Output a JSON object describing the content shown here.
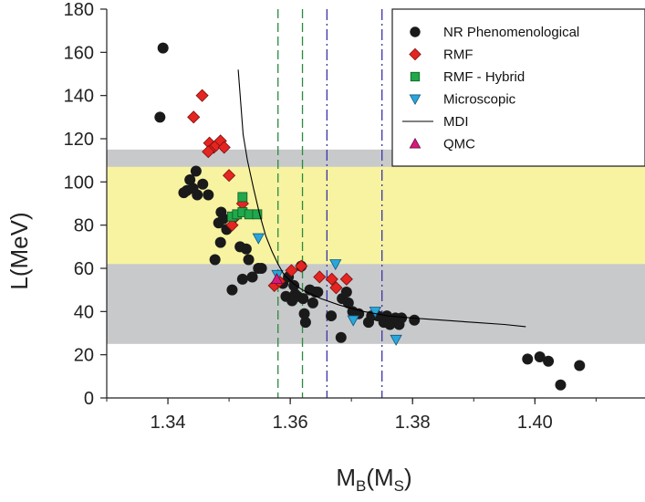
{
  "chart_data": {
    "type": "scatter",
    "xlabel": {
      "main": "M",
      "sub1": "B",
      "mid": "(M",
      "sub2": "S",
      "end": ")"
    },
    "ylabel": "L(MeV)",
    "xlim": [
      1.33,
      1.418
    ],
    "ylim": [
      0,
      180
    ],
    "xticks": [
      1.34,
      1.36,
      1.38,
      1.4
    ],
    "xtick_labels": [
      "1.34",
      "1.36",
      "1.38",
      "1.40"
    ],
    "yticks": [
      0,
      20,
      40,
      60,
      80,
      100,
      120,
      140,
      160,
      180
    ],
    "ytick_labels": [
      "0",
      "20",
      "40",
      "60",
      "80",
      "100",
      "120",
      "140",
      "160",
      "180"
    ],
    "grid": false,
    "legend_placement": "top-right",
    "colors": {
      "gray_band": "#c8c9cb",
      "yellow_band": "#f7f3a1",
      "nr": "#1a1a1a",
      "rmf": "#e52521",
      "hybrid": "#20a84a",
      "micro": "#2aa6dc",
      "qmc": "#d6197c",
      "mdi": "#000000",
      "green_dash": "#2a8a3e",
      "blue_dashdot": "#3a33a8"
    },
    "bands": [
      {
        "ymin": 25,
        "ymax": 115,
        "color": "gray"
      },
      {
        "ymin": 62,
        "ymax": 107,
        "color": "yellow"
      }
    ],
    "vlines": [
      {
        "x": 1.358,
        "style": "dashed",
        "color": "green"
      },
      {
        "x": 1.362,
        "style": "dashed",
        "color": "green"
      },
      {
        "x": 1.366,
        "style": "dashdot",
        "color": "blue"
      },
      {
        "x": 1.375,
        "style": "dashdot",
        "color": "blue"
      }
    ],
    "series": [
      {
        "name": "NR Phenomenological",
        "marker": "circle",
        "points": [
          [
            1.3392,
            162
          ],
          [
            1.3387,
            130
          ],
          [
            1.3426,
            95
          ],
          [
            1.3431,
            96
          ],
          [
            1.3436,
            101
          ],
          [
            1.3441,
            97
          ],
          [
            1.3446,
            105
          ],
          [
            1.3448,
            94
          ],
          [
            1.3457,
            99
          ],
          [
            1.3466,
            94
          ],
          [
            1.3477,
            64
          ],
          [
            1.3483,
            81
          ],
          [
            1.3486,
            72
          ],
          [
            1.3487,
            86
          ],
          [
            1.3491,
            83
          ],
          [
            1.3496,
            78
          ],
          [
            1.3505,
            50
          ],
          [
            1.3518,
            70
          ],
          [
            1.3522,
            55
          ],
          [
            1.3528,
            69
          ],
          [
            1.3532,
            64
          ],
          [
            1.3538,
            56
          ],
          [
            1.3548,
            60
          ],
          [
            1.3553,
            60
          ],
          [
            1.3588,
            53
          ],
          [
            1.3593,
            47
          ],
          [
            1.3597,
            56
          ],
          [
            1.3603,
            45
          ],
          [
            1.3606,
            52
          ],
          [
            1.3608,
            48
          ],
          [
            1.3612,
            47
          ],
          [
            1.3618,
            61
          ],
          [
            1.3621,
            46
          ],
          [
            1.3623,
            39
          ],
          [
            1.3625,
            35
          ],
          [
            1.3632,
            50
          ],
          [
            1.3637,
            44
          ],
          [
            1.3641,
            49
          ],
          [
            1.3645,
            49
          ],
          [
            1.3667,
            38
          ],
          [
            1.3683,
            28
          ],
          [
            1.3685,
            46
          ],
          [
            1.3692,
            49
          ],
          [
            1.3695,
            44
          ],
          [
            1.3702,
            40
          ],
          [
            1.3712,
            39
          ],
          [
            1.3728,
            35
          ],
          [
            1.3733,
            38
          ],
          [
            1.3743,
            38
          ],
          [
            1.3753,
            35
          ],
          [
            1.3758,
            38
          ],
          [
            1.3763,
            34
          ],
          [
            1.3772,
            37
          ],
          [
            1.3778,
            34
          ],
          [
            1.3782,
            37
          ],
          [
            1.3803,
            36
          ],
          [
            1.3988,
            18
          ],
          [
            1.4008,
            19
          ],
          [
            1.4022,
            17
          ],
          [
            1.4042,
            6
          ],
          [
            1.4073,
            15
          ]
        ]
      },
      {
        "name": "RMF",
        "marker": "diamond",
        "points": [
          [
            1.3456,
            140
          ],
          [
            1.3442,
            130
          ],
          [
            1.3468,
            118
          ],
          [
            1.3475,
            116
          ],
          [
            1.3479,
            117
          ],
          [
            1.3486,
            119
          ],
          [
            1.3492,
            116
          ],
          [
            1.3466,
            114
          ],
          [
            1.35,
            103
          ],
          [
            1.3505,
            80
          ],
          [
            1.3522,
            90
          ],
          [
            1.3511,
            84
          ],
          [
            1.3574,
            52
          ],
          [
            1.3582,
            54
          ],
          [
            1.3602,
            59
          ],
          [
            1.3618,
            61
          ],
          [
            1.3648,
            56
          ],
          [
            1.3668,
            55
          ],
          [
            1.3675,
            51
          ],
          [
            1.3692,
            55
          ]
        ]
      },
      {
        "name": "RMF - Hybrid",
        "marker": "square",
        "points": [
          [
            1.3522,
            93
          ],
          [
            1.3505,
            84
          ],
          [
            1.3513,
            85
          ],
          [
            1.3522,
            86
          ],
          [
            1.3533,
            85
          ],
          [
            1.3546,
            85
          ]
        ]
      },
      {
        "name": "Microscopic",
        "marker": "triangle-down",
        "points": [
          [
            1.3548,
            74
          ],
          [
            1.3579,
            57
          ],
          [
            1.3674,
            62
          ],
          [
            1.3703,
            36
          ],
          [
            1.3739,
            40
          ],
          [
            1.3773,
            27
          ]
        ]
      },
      {
        "name": "MDI",
        "marker": "line",
        "points": [
          [
            1.3515,
            152
          ],
          [
            1.3523,
            122
          ],
          [
            1.353,
            110
          ],
          [
            1.354,
            97
          ],
          [
            1.355,
            85
          ],
          [
            1.356,
            75
          ],
          [
            1.357,
            68
          ],
          [
            1.358,
            62
          ],
          [
            1.359,
            57
          ],
          [
            1.3605,
            53
          ],
          [
            1.362,
            50
          ],
          [
            1.365,
            46
          ],
          [
            1.368,
            43
          ],
          [
            1.372,
            40
          ],
          [
            1.376,
            38
          ],
          [
            1.38,
            37
          ],
          [
            1.385,
            36
          ],
          [
            1.39,
            35
          ],
          [
            1.395,
            34
          ],
          [
            1.3985,
            33
          ]
        ]
      },
      {
        "name": "QMC",
        "marker": "triangle-up",
        "points": [
          [
            1.3578,
            55
          ]
        ]
      }
    ]
  }
}
